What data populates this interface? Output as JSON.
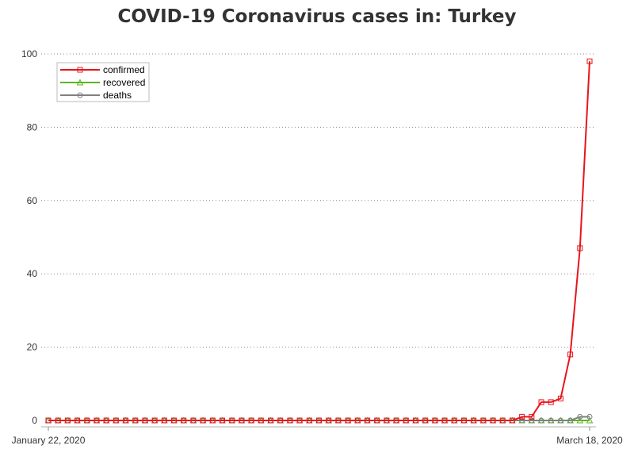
{
  "chart_data": {
    "type": "line",
    "title": "COVID-19 Coronavirus cases in: Turkey",
    "xlabel": "",
    "ylabel": "",
    "ylim": [
      0,
      100
    ],
    "yticks": [
      0,
      20,
      40,
      60,
      80,
      100
    ],
    "x_start": "2020-01-22",
    "x_end": "2020-03-18",
    "x_tick_labels": [
      "January 22, 2020",
      "March 18, 2020"
    ],
    "grid": "horizontal dotted",
    "legend_position": "top-left",
    "series": [
      {
        "name": "confirmed",
        "color": "#e8141b",
        "marker": "square",
        "values": [
          0,
          0,
          0,
          0,
          0,
          0,
          0,
          0,
          0,
          0,
          0,
          0,
          0,
          0,
          0,
          0,
          0,
          0,
          0,
          0,
          0,
          0,
          0,
          0,
          0,
          0,
          0,
          0,
          0,
          0,
          0,
          0,
          0,
          0,
          0,
          0,
          0,
          0,
          0,
          0,
          0,
          0,
          0,
          0,
          0,
          0,
          0,
          0,
          0,
          1,
          1,
          5,
          5,
          6,
          18,
          47,
          98
        ]
      },
      {
        "name": "recovered",
        "color": "#5db323",
        "marker": "triangle",
        "values": [
          0,
          0,
          0,
          0,
          0,
          0,
          0,
          0,
          0,
          0,
          0,
          0,
          0,
          0,
          0,
          0,
          0,
          0,
          0,
          0,
          0,
          0,
          0,
          0,
          0,
          0,
          0,
          0,
          0,
          0,
          0,
          0,
          0,
          0,
          0,
          0,
          0,
          0,
          0,
          0,
          0,
          0,
          0,
          0,
          0,
          0,
          0,
          0,
          0,
          0,
          0,
          0,
          0,
          0,
          0,
          0,
          0
        ]
      },
      {
        "name": "deaths",
        "color": "#808080",
        "marker": "circle",
        "values": [
          0,
          0,
          0,
          0,
          0,
          0,
          0,
          0,
          0,
          0,
          0,
          0,
          0,
          0,
          0,
          0,
          0,
          0,
          0,
          0,
          0,
          0,
          0,
          0,
          0,
          0,
          0,
          0,
          0,
          0,
          0,
          0,
          0,
          0,
          0,
          0,
          0,
          0,
          0,
          0,
          0,
          0,
          0,
          0,
          0,
          0,
          0,
          0,
          0,
          0,
          0,
          0,
          0,
          0,
          0,
          1,
          1
        ]
      }
    ]
  }
}
